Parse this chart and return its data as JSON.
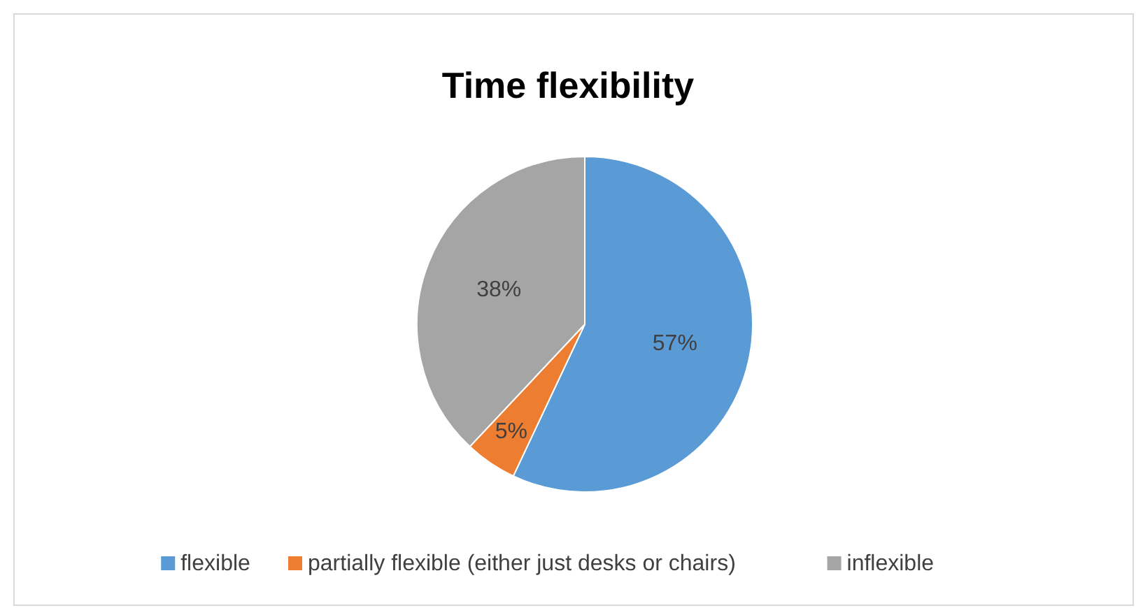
{
  "chart_data": {
    "type": "pie",
    "title": "Time flexibility",
    "categories": [
      "flexible",
      "partially flexible (either just desks or chairs)",
      "inflexible"
    ],
    "values": [
      57,
      5,
      38
    ],
    "colors": [
      "#5b9bd5",
      "#ed7d31",
      "#a5a5a5"
    ],
    "value_labels": [
      "57%",
      "5%",
      "38%"
    ],
    "legend": "bottom"
  }
}
